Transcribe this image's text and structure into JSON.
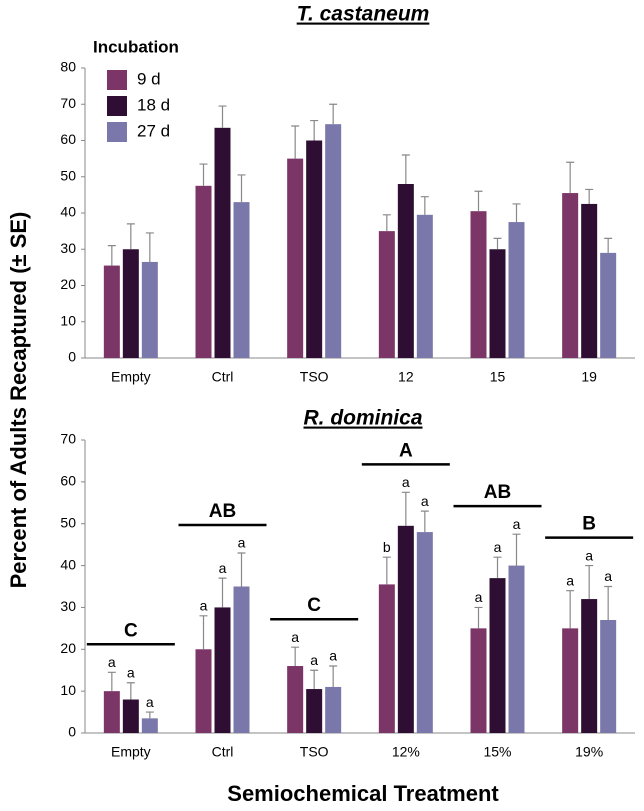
{
  "chart_data": [
    {
      "type": "bar",
      "title": "T. castaneum",
      "ylabel": "Percent of Adults Recaptured (± SE)",
      "legend_title": "Incubation",
      "legend": "top-left",
      "categories": [
        "Empty",
        "Ctrl",
        "TSO",
        "12",
        "15",
        "19"
      ],
      "ylim": [
        0,
        80
      ],
      "yticks": [
        0,
        10,
        20,
        30,
        40,
        50,
        60,
        70,
        80
      ],
      "series": [
        {
          "name": "9 d",
          "color": "#7b3566",
          "values": [
            25.5,
            47.5,
            55,
            35,
            40.5,
            45.5
          ],
          "errors": [
            5.5,
            6,
            9,
            4.5,
            5.5,
            8.5
          ]
        },
        {
          "name": "18 d",
          "color": "#2e0f33",
          "values": [
            30,
            63.5,
            60,
            48,
            30,
            42.5
          ],
          "errors": [
            7,
            6,
            5.5,
            8,
            3,
            4
          ]
        },
        {
          "name": "27 d",
          "color": "#7a78ab",
          "values": [
            26.5,
            43,
            64.5,
            39.5,
            37.5,
            29
          ],
          "errors": [
            8,
            7.5,
            5.5,
            5,
            5,
            4
          ]
        }
      ]
    },
    {
      "type": "bar",
      "title": "R. dominica",
      "xlabel": "Semiochemical Treatment",
      "categories": [
        "Empty",
        "Ctrl",
        "TSO",
        "12%",
        "15%",
        "19%"
      ],
      "group_letters": [
        "C",
        "AB",
        "C",
        "A",
        "AB",
        "B"
      ],
      "ylim": [
        0,
        70
      ],
      "yticks": [
        0,
        10,
        20,
        30,
        40,
        50,
        60,
        70
      ],
      "series": [
        {
          "name": "9 d",
          "color": "#7b3566",
          "values": [
            10,
            20,
            16,
            35.5,
            25,
            25
          ],
          "errors": [
            4.5,
            8,
            4.5,
            6.5,
            5,
            9
          ],
          "letters": [
            "a",
            "a",
            "a",
            "b",
            "a",
            "a"
          ]
        },
        {
          "name": "18 d",
          "color": "#2e0f33",
          "values": [
            8,
            30,
            10.5,
            49.5,
            37,
            32
          ],
          "errors": [
            4,
            7,
            4.5,
            8,
            5,
            8
          ],
          "letters": [
            "a",
            "a",
            "a",
            "a",
            "a",
            "a"
          ]
        },
        {
          "name": "27 d",
          "color": "#7a78ab",
          "values": [
            3.5,
            35,
            11,
            48,
            40,
            27
          ],
          "errors": [
            1.5,
            8,
            5,
            5,
            7.5,
            8
          ],
          "letters": [
            "a",
            "a",
            "a",
            "a",
            "a",
            "a"
          ]
        }
      ]
    }
  ]
}
